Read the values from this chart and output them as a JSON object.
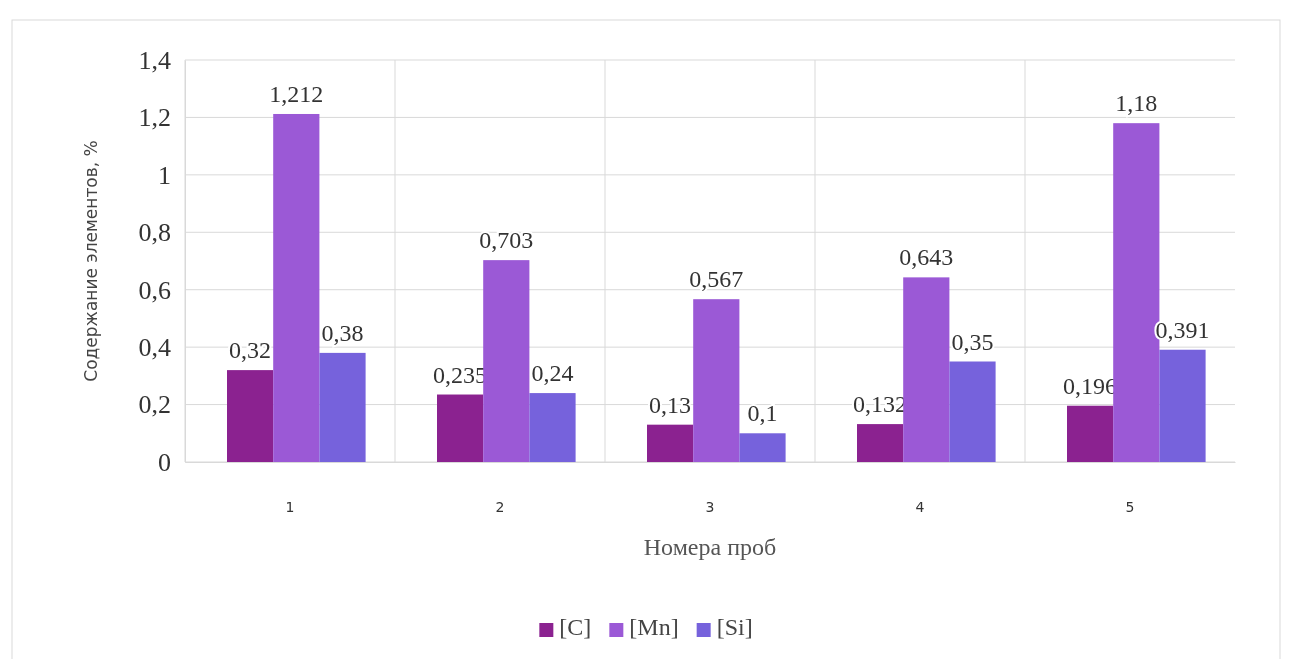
{
  "chart_data": {
    "type": "bar",
    "xlabel": "Номера проб",
    "ylabel": "Содержание элементов, %",
    "categories": [
      "1",
      "2",
      "3",
      "4",
      "5"
    ],
    "series": [
      {
        "name": "[C]",
        "color": "#8b2290",
        "values": [
          0.32,
          0.235,
          0.13,
          0.132,
          0.196
        ],
        "value_labels": [
          "0,32",
          "0,235",
          "0,13",
          "0,132",
          "0,196"
        ]
      },
      {
        "name": "[Mn]",
        "color": "#9b59d6",
        "values": [
          1.212,
          0.703,
          0.567,
          0.643,
          1.18
        ],
        "value_labels": [
          "1,212",
          "0,703",
          "0,567",
          "0,643",
          "1,18"
        ]
      },
      {
        "name": "[Si]",
        "color": "#7662dc",
        "values": [
          0.38,
          0.24,
          0.1,
          0.35,
          0.391
        ],
        "value_labels": [
          "0,38",
          "0,24",
          "0,1",
          "0,35",
          "0,391"
        ]
      }
    ],
    "ylim": [
      0,
      1.4
    ],
    "yticks": [
      0,
      {
        "value": 0.2,
        "label": "0,2"
      },
      {
        "value": 0.4,
        "label": "0,4"
      },
      {
        "value": 0.6,
        "label": "0,6"
      },
      {
        "value": 0.8,
        "label": "0,8"
      },
      1,
      {
        "value": 1.2,
        "label": "1,2"
      },
      {
        "value": 1.4,
        "label": "1,4"
      }
    ],
    "grid": true,
    "legend": "bottom"
  }
}
